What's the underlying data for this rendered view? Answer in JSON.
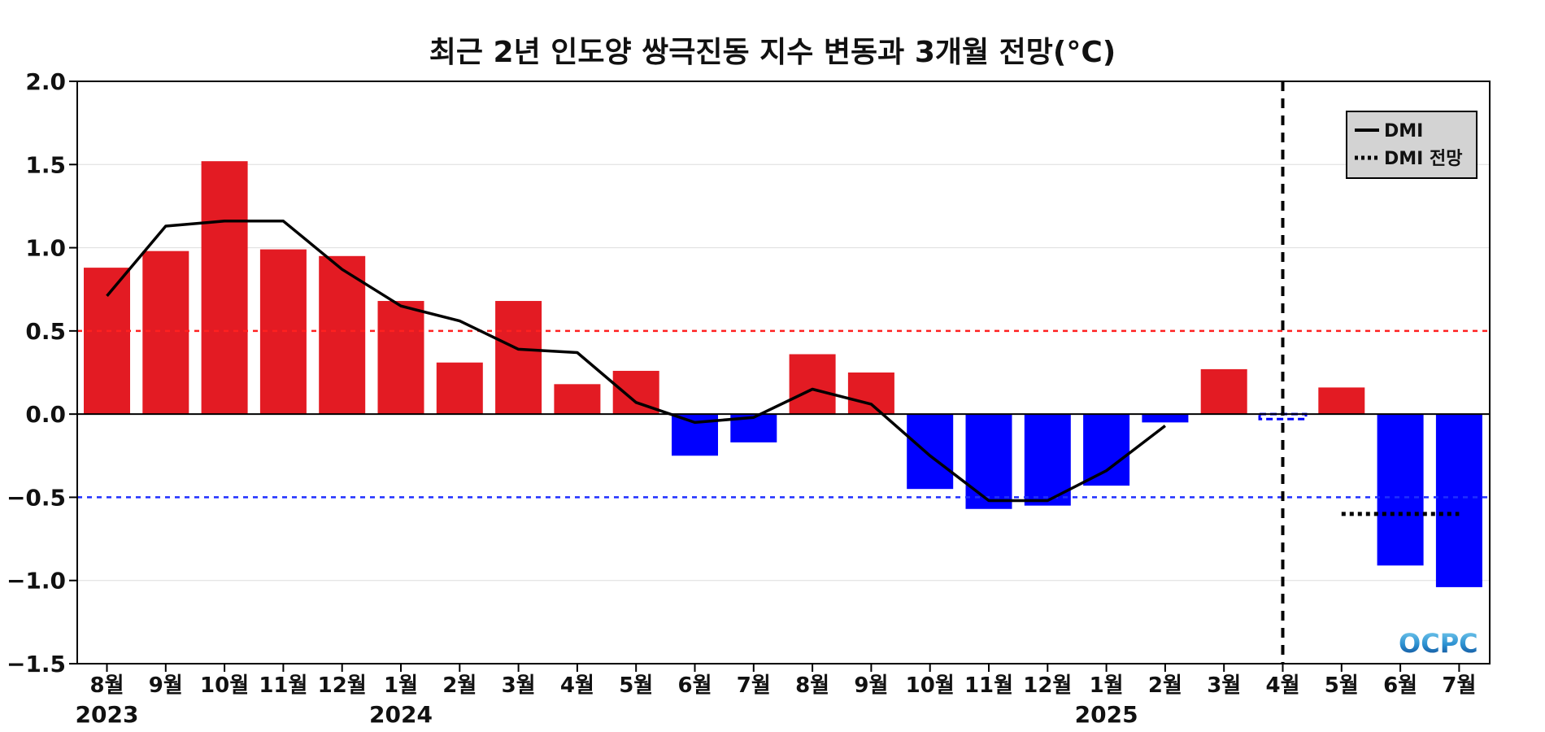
{
  "chart_data": {
    "type": "bar",
    "title": "최근 2년 인도양 쌍극진동 지수 변동과 3개월 전망(°C)",
    "categories": [
      "8월",
      "9월",
      "10월",
      "11월",
      "12월",
      "1월",
      "2월",
      "3월",
      "4월",
      "5월",
      "6월",
      "7월",
      "8월",
      "9월",
      "10월",
      "11월",
      "12월",
      "1월",
      "2월",
      "3월",
      "4월",
      "5월",
      "6월",
      "7월"
    ],
    "year_labels": [
      {
        "index": 0,
        "label": "2023"
      },
      {
        "index": 5,
        "label": "2024"
      },
      {
        "index": 17,
        "label": "2025"
      }
    ],
    "bar_values": [
      0.88,
      0.98,
      1.52,
      0.99,
      0.95,
      0.68,
      0.31,
      0.68,
      0.18,
      0.26,
      -0.25,
      -0.17,
      0.36,
      0.25,
      -0.45,
      -0.57,
      -0.55,
      -0.43,
      -0.05,
      0.27,
      -0.03,
      0.16,
      -0.91,
      -1.04
    ],
    "forecast_bar_index": 20,
    "series": [
      {
        "name": "DMI",
        "style": "solid",
        "values": [
          0.71,
          1.13,
          1.16,
          1.16,
          0.87,
          0.65,
          0.56,
          0.39,
          0.37,
          0.07,
          -0.05,
          -0.02,
          0.15,
          0.06,
          -0.25,
          -0.52,
          -0.52,
          -0.34,
          -0.07,
          null,
          null,
          null,
          null,
          null
        ]
      },
      {
        "name": "DMI 전망",
        "style": "dotted",
        "values": [
          null,
          null,
          null,
          null,
          null,
          null,
          null,
          null,
          null,
          null,
          null,
          null,
          null,
          null,
          null,
          null,
          null,
          null,
          null,
          null,
          null,
          -0.6,
          -0.6,
          -0.6
        ]
      }
    ],
    "ylim": [
      -1.5,
      2.0
    ],
    "yticks": [
      2.0,
      1.5,
      1.0,
      0.5,
      0.0,
      -0.5,
      -1.0,
      -1.5
    ],
    "ytick_labels": [
      "2.0",
      "1.5",
      "1.0",
      "0.5",
      "0.0",
      "−0.5",
      "−1.0",
      "−1.5"
    ],
    "thresholds": [
      {
        "value": 0.5,
        "color": "#ff2020"
      },
      {
        "value": -0.5,
        "color": "#1f2fff"
      }
    ],
    "forecast_divider_index": 20,
    "grid": true,
    "legend_position": "top-right",
    "colors": {
      "positive": "#e31b23",
      "negative": "#0000ff",
      "line": "#000000"
    }
  },
  "logo": {
    "text": "OCPC"
  }
}
